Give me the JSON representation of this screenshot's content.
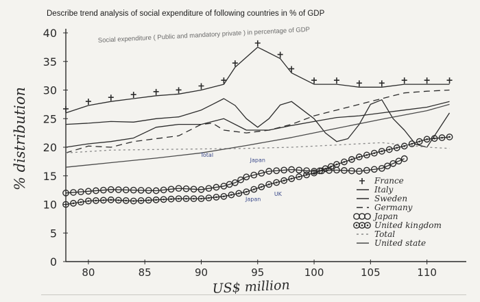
{
  "question": "Describe trend analysis of social expenditure of following countries in % of GDP",
  "chart_data": {
    "type": "line",
    "title": "Social expenditure ( Public and mandatory private ) in percentage of GDP",
    "ylabel": "% distribution",
    "xlabel": "US$ million",
    "xlim": [
      78,
      113
    ],
    "ylim": [
      0,
      40
    ],
    "x_ticks": [
      "80",
      "85",
      "90",
      "95",
      "100",
      "105",
      "110"
    ],
    "y_ticks": [
      "0",
      "5",
      "10",
      "15",
      "20",
      "25",
      "30",
      "35",
      "40"
    ],
    "legend_position": "lower-right",
    "annotations": [
      {
        "text": "Japan",
        "x": 95,
        "y": 17.4
      },
      {
        "text": "Total",
        "x": 90.5,
        "y": 18.3
      },
      {
        "text": "UK",
        "x": 96.8,
        "y": 11.5
      },
      {
        "text": "Japan",
        "x": 94.6,
        "y": 10.6
      }
    ],
    "series": [
      {
        "name": "France",
        "style": "cross",
        "color": "#2a2a2a",
        "x": [
          78,
          80,
          82,
          84,
          86,
          88,
          90,
          92,
          93,
          95,
          97,
          98,
          100,
          102,
          104,
          106,
          108,
          110,
          112
        ],
        "y": [
          26,
          27.3,
          28,
          28.5,
          29,
          29.3,
          30,
          31,
          34,
          37.5,
          35.5,
          33,
          31,
          31,
          30.5,
          30.5,
          31,
          31,
          31
        ]
      },
      {
        "name": "Italy",
        "style": "plain",
        "color": "#2b2b2b",
        "x": [
          78,
          80,
          82,
          84,
          86,
          88,
          90,
          91,
          92,
          93,
          94,
          95,
          96,
          97,
          98,
          100,
          101,
          102,
          103,
          104,
          105,
          106,
          107,
          108,
          109,
          110,
          111,
          112
        ],
        "y": [
          24,
          24.2,
          24.5,
          24.4,
          25,
          25.3,
          26.5,
          27.5,
          28.5,
          27.3,
          25,
          23.5,
          25,
          27.4,
          28,
          25,
          22.5,
          21,
          21.5,
          24,
          27.5,
          28.3,
          25,
          23,
          20.5,
          20,
          23,
          26
        ]
      },
      {
        "name": "Sweden",
        "style": "plain",
        "color": "#2b2b2b",
        "x": [
          78,
          80,
          82,
          84,
          86,
          88,
          90,
          92,
          94,
          96,
          98,
          100,
          102,
          104,
          106,
          108,
          110,
          112
        ],
        "y": [
          20,
          20.6,
          21,
          21.6,
          23.5,
          24,
          24,
          25,
          23,
          23,
          23.8,
          24.5,
          25.2,
          25.5,
          26,
          26.5,
          27,
          28
        ]
      },
      {
        "name": "Germany",
        "style": "dashed",
        "color": "#2a2a2a",
        "x": [
          78,
          80,
          82,
          84,
          86,
          88,
          90,
          91,
          92,
          94,
          96,
          98,
          100,
          102,
          104,
          106,
          108,
          110,
          112
        ],
        "y": [
          19,
          20.2,
          20,
          21,
          21.5,
          22,
          24,
          24.2,
          23,
          22.5,
          23,
          24,
          25.5,
          26.5,
          27.5,
          28.5,
          29.5,
          29.8,
          30
        ]
      },
      {
        "name": "Japan",
        "style": "circles",
        "color": "#2a2a2a",
        "x": [
          78,
          80,
          82,
          84,
          86,
          88,
          90,
          92,
          93,
          94,
          96,
          98,
          100,
          102,
          104,
          106,
          108
        ],
        "y": [
          12,
          12.3,
          12.6,
          12.5,
          12.4,
          12.8,
          12.6,
          13.2,
          13.8,
          14.8,
          15.8,
          16.1,
          15.8,
          16,
          15.8,
          16.3,
          18
        ]
      },
      {
        "name": "United kingdom",
        "style": "dotted-circles",
        "color": "#2a2a2a",
        "x": [
          78,
          80,
          82,
          84,
          86,
          88,
          90,
          92,
          94,
          96,
          98,
          100,
          102,
          104,
          106,
          108,
          110,
          112
        ],
        "y": [
          10,
          10.6,
          10.8,
          10.6,
          10.8,
          11,
          11,
          11.4,
          12.2,
          13.5,
          14.5,
          15.5,
          17,
          18.3,
          19.3,
          20.2,
          21.4,
          21.8
        ]
      },
      {
        "name": "Total",
        "style": "fine-dashed",
        "color": "#8a8a8a",
        "x": [
          78,
          82,
          86,
          90,
          94,
          98,
          102,
          106,
          110,
          112
        ],
        "y": [
          19,
          19.5,
          19.6,
          19.7,
          19.8,
          20,
          20.4,
          20.8,
          20,
          19.8
        ]
      },
      {
        "name": "United state",
        "style": "plain",
        "color": "#4a4a4a",
        "x": [
          78,
          82,
          86,
          90,
          94,
          98,
          102,
          106,
          110,
          112
        ],
        "y": [
          16.5,
          17.3,
          18.1,
          19.0,
          20.3,
          21.7,
          23.3,
          24.9,
          26.4,
          27.5
        ]
      }
    ]
  }
}
